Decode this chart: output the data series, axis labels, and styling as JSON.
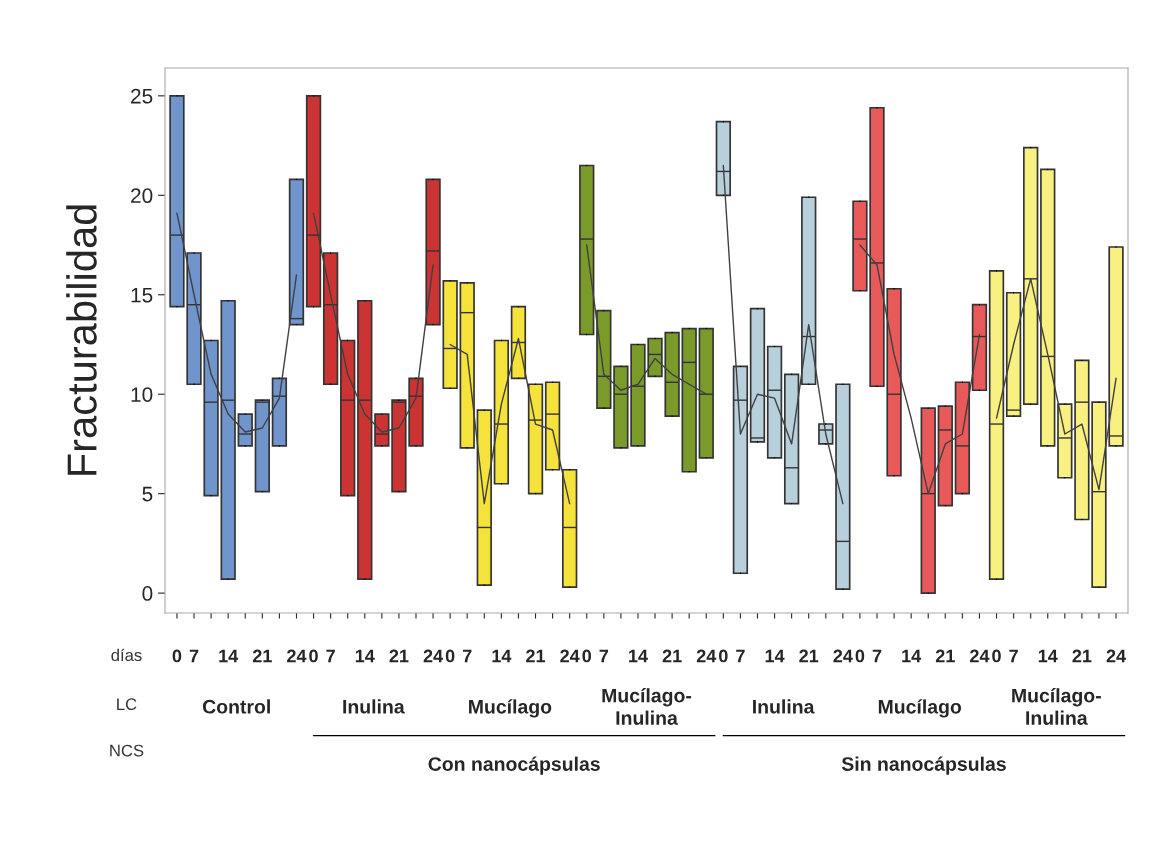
{
  "chart_data": {
    "type": "box",
    "ylabel": "Fracturabilidad",
    "categories": [
      "0",
      "7",
      null,
      "14",
      null,
      "21",
      null,
      "24",
      "0",
      "7",
      null,
      "14",
      null,
      "21",
      null,
      "24",
      "0",
      "7",
      null,
      "14",
      null,
      "21",
      null,
      "24",
      "0",
      "7",
      null,
      "14",
      null,
      "21",
      null,
      "24",
      "0",
      "7",
      null,
      "14",
      null,
      "21",
      null,
      "24",
      "0",
      "7",
      null,
      "14",
      null,
      "21",
      null,
      "24",
      "0",
      "7",
      null,
      "14",
      null,
      "21",
      null,
      "24"
    ],
    "ylim": [
      -1,
      26.4
    ],
    "yticks": [
      0,
      5,
      10,
      15,
      20,
      25
    ],
    "boxes": [
      {
        "low": 14.4,
        "q1": 14.4,
        "median": 18.0,
        "q3": 25.0,
        "high": 25.0
      },
      {
        "low": 10.5,
        "q1": 10.5,
        "median": 14.5,
        "q3": 17.1,
        "high": 17.1
      },
      {
        "low": 4.9,
        "q1": 4.9,
        "median": 9.6,
        "q3": 12.7,
        "high": 12.7
      },
      {
        "low": 0.7,
        "q1": 0.7,
        "median": 9.7,
        "q3": 14.7,
        "high": 14.7
      },
      {
        "low": 7.4,
        "q1": 7.4,
        "median": 8.0,
        "q3": 9.0,
        "high": 9.0
      },
      {
        "low": 5.1,
        "q1": 5.1,
        "median": 9.6,
        "q3": 9.7,
        "high": 9.7
      },
      {
        "low": 7.4,
        "q1": 7.4,
        "median": 9.9,
        "q3": 10.8,
        "high": 10.8
      },
      {
        "low": 13.5,
        "q1": 13.5,
        "median": 13.8,
        "q3": 20.8,
        "high": 20.8
      },
      {
        "low": 14.4,
        "q1": 14.4,
        "median": 18.0,
        "q3": 25.0,
        "high": 25.0
      },
      {
        "low": 10.5,
        "q1": 10.5,
        "median": 14.5,
        "q3": 17.1,
        "high": 17.1
      },
      {
        "low": 4.9,
        "q1": 4.9,
        "median": 9.7,
        "q3": 12.7,
        "high": 12.7
      },
      {
        "low": 0.7,
        "q1": 0.7,
        "median": 9.7,
        "q3": 14.7,
        "high": 14.7
      },
      {
        "low": 7.4,
        "q1": 7.4,
        "median": 8.0,
        "q3": 9.0,
        "high": 9.0
      },
      {
        "low": 5.1,
        "q1": 5.1,
        "median": 9.6,
        "q3": 9.7,
        "high": 9.7
      },
      {
        "low": 7.4,
        "q1": 7.4,
        "median": 9.9,
        "q3": 10.8,
        "high": 10.8
      },
      {
        "low": 13.5,
        "q1": 13.5,
        "median": 17.2,
        "q3": 20.8,
        "high": 20.8
      },
      {
        "low": 10.3,
        "q1": 10.3,
        "median": 12.3,
        "q3": 15.7,
        "high": 15.7
      },
      {
        "low": 7.3,
        "q1": 7.3,
        "median": 14.1,
        "q3": 15.6,
        "high": 15.6
      },
      {
        "low": 0.4,
        "q1": 0.4,
        "median": 3.3,
        "q3": 9.2,
        "high": 9.2
      },
      {
        "low": 5.5,
        "q1": 5.5,
        "median": 8.5,
        "q3": 12.7,
        "high": 12.7
      },
      {
        "low": 10.8,
        "q1": 10.8,
        "median": 12.6,
        "q3": 14.4,
        "high": 14.4
      },
      {
        "low": 5.0,
        "q1": 5.0,
        "median": 8.7,
        "q3": 10.5,
        "high": 10.5
      },
      {
        "low": 6.2,
        "q1": 6.2,
        "median": 9.0,
        "q3": 10.6,
        "high": 10.6
      },
      {
        "low": 0.3,
        "q1": 0.3,
        "median": 3.3,
        "q3": 6.2,
        "high": 6.2
      },
      {
        "low": 13.0,
        "q1": 13.0,
        "median": 17.8,
        "q3": 21.5,
        "high": 21.5
      },
      {
        "low": 9.3,
        "q1": 9.3,
        "median": 10.9,
        "q3": 14.2,
        "high": 14.2
      },
      {
        "low": 7.3,
        "q1": 7.3,
        "median": 10.0,
        "q3": 11.4,
        "high": 11.4
      },
      {
        "low": 7.4,
        "q1": 7.4,
        "median": 10.4,
        "q3": 12.5,
        "high": 12.5
      },
      {
        "low": 10.9,
        "q1": 10.9,
        "median": 12.0,
        "q3": 12.8,
        "high": 12.8
      },
      {
        "low": 8.9,
        "q1": 8.9,
        "median": 10.6,
        "q3": 13.1,
        "high": 13.1
      },
      {
        "low": 6.1,
        "q1": 6.1,
        "median": 11.6,
        "q3": 13.3,
        "high": 13.3
      },
      {
        "low": 6.8,
        "q1": 6.8,
        "median": 10.0,
        "q3": 13.3,
        "high": 13.3
      },
      {
        "low": 20.0,
        "q1": 20.0,
        "median": 21.2,
        "q3": 23.7,
        "high": 23.7
      },
      {
        "low": 1.0,
        "q1": 1.0,
        "median": 9.7,
        "q3": 11.4,
        "high": 11.4
      },
      {
        "low": 7.6,
        "q1": 7.6,
        "median": 7.8,
        "q3": 14.3,
        "high": 14.3
      },
      {
        "low": 6.8,
        "q1": 6.8,
        "median": 10.2,
        "q3": 12.4,
        "high": 12.4
      },
      {
        "low": 4.5,
        "q1": 4.5,
        "median": 6.3,
        "q3": 11.0,
        "high": 11.0
      },
      {
        "low": 10.5,
        "q1": 10.5,
        "median": 12.9,
        "q3": 19.9,
        "high": 19.9
      },
      {
        "low": 7.5,
        "q1": 7.5,
        "median": 8.2,
        "q3": 8.5,
        "high": 8.5
      },
      {
        "low": 0.2,
        "q1": 0.2,
        "median": 2.6,
        "q3": 10.5,
        "high": 10.5
      },
      {
        "low": 15.2,
        "q1": 15.2,
        "median": 17.8,
        "q3": 19.7,
        "high": 19.7
      },
      {
        "low": 10.4,
        "q1": 10.4,
        "median": 16.6,
        "q3": 24.4,
        "high": 24.4
      },
      {
        "low": 5.9,
        "q1": 5.9,
        "median": 10.0,
        "q3": 15.3,
        "high": 15.3
      },
      null,
      {
        "low": 0.0,
        "q1": 0.0,
        "median": 5.0,
        "q3": 9.3,
        "high": 9.3
      },
      {
        "low": 4.4,
        "q1": 4.4,
        "median": 8.2,
        "q3": 9.4,
        "high": 9.4
      },
      {
        "low": 5.0,
        "q1": 5.0,
        "median": 7.4,
        "q3": 10.6,
        "high": 10.6
      },
      {
        "low": 10.2,
        "q1": 10.2,
        "median": 12.9,
        "q3": 14.5,
        "high": 14.5
      },
      {
        "low": 0.7,
        "q1": 0.7,
        "median": 8.5,
        "q3": 16.2,
        "high": 16.2
      },
      {
        "low": 8.9,
        "q1": 8.9,
        "median": 9.2,
        "q3": 15.1,
        "high": 15.1
      },
      {
        "low": 9.5,
        "q1": 9.5,
        "median": 15.8,
        "q3": 22.4,
        "high": 22.4
      },
      {
        "low": 7.4,
        "q1": 7.4,
        "median": 11.9,
        "q3": 21.3,
        "high": 21.3
      },
      {
        "low": 5.8,
        "q1": 5.8,
        "median": 7.8,
        "q3": 9.5,
        "high": 9.5
      },
      {
        "low": 3.7,
        "q1": 3.7,
        "median": 9.6,
        "q3": 11.7,
        "high": 11.7
      },
      {
        "low": 0.3,
        "q1": 0.3,
        "median": 5.1,
        "q3": 9.6,
        "high": 9.6
      },
      {
        "low": 7.4,
        "q1": 7.4,
        "median": 7.9,
        "q3": 17.4,
        "high": 17.4
      }
    ],
    "colors": [
      "#7094cc",
      "#7094cc",
      "#7094cc",
      "#7094cc",
      "#7094cc",
      "#7094cc",
      "#7094cc",
      "#7094cc",
      "#cc3333",
      "#cc3333",
      "#cc3333",
      "#cc3333",
      "#cc3333",
      "#cc3333",
      "#cc3333",
      "#cc3333",
      "#f5e23a",
      "#f5e23a",
      "#f5e23a",
      "#f5e23a",
      "#f5e23a",
      "#f5e23a",
      "#f5e23a",
      "#f5e23a",
      "#7a9a2a",
      "#7a9a2a",
      "#7a9a2a",
      "#7a9a2a",
      "#7a9a2a",
      "#7a9a2a",
      "#7a9a2a",
      "#7a9a2a",
      "#b8d0dc",
      "#b8d0dc",
      "#b8d0dc",
      "#b8d0dc",
      "#b8d0dc",
      "#b8d0dc",
      "#b8d0dc",
      "#b8d0dc",
      "#e85a5a",
      "#e85a5a",
      "#e85a5a",
      "#e85a5a",
      "#e85a5a",
      "#e85a5a",
      "#e85a5a",
      "#e85a5a",
      "#f8f080",
      "#f8f080",
      "#f8f080",
      "#f8f080",
      "#f8f080",
      "#f8f080",
      "#f8f080",
      "#f8f080"
    ],
    "series": [
      {
        "type": "line",
        "color": "#404040",
        "values": [
          19.1,
          15.0,
          11.0,
          9.0,
          8.1,
          8.3,
          9.8,
          16.0,
          null,
          null,
          null,
          null,
          null,
          null,
          null,
          null,
          null,
          null,
          null,
          null,
          null,
          null,
          null,
          null,
          null,
          null,
          null,
          null,
          null,
          null,
          null,
          null,
          null,
          null,
          null,
          null,
          null,
          null,
          null,
          null,
          null,
          null,
          null,
          null,
          null,
          null,
          null,
          null,
          null,
          null,
          null,
          null,
          null,
          null,
          null,
          null
        ]
      },
      {
        "type": "line",
        "color": "#404040",
        "values": [
          null,
          null,
          null,
          null,
          null,
          null,
          null,
          null,
          19.1,
          15.0,
          11.0,
          9.0,
          8.1,
          8.3,
          9.8,
          16.5,
          null,
          null,
          null,
          null,
          null,
          null,
          null,
          null,
          null,
          null,
          null,
          null,
          null,
          null,
          null,
          null,
          null,
          null,
          null,
          null,
          null,
          null,
          null,
          null,
          null,
          null,
          null,
          null,
          null,
          null,
          null,
          null,
          null,
          null,
          null,
          null,
          null,
          null,
          null,
          null
        ]
      },
      {
        "type": "line",
        "color": "#404040",
        "values": [
          null,
          null,
          null,
          null,
          null,
          null,
          null,
          null,
          null,
          null,
          null,
          null,
          null,
          null,
          null,
          null,
          12.5,
          12.0,
          4.5,
          9.5,
          12.8,
          8.5,
          8.2,
          4.5,
          null,
          null,
          null,
          null,
          null,
          null,
          null,
          null,
          null,
          null,
          null,
          null,
          null,
          null,
          null,
          null,
          null,
          null,
          null,
          null,
          null,
          null,
          null,
          null,
          null,
          null,
          null,
          null,
          null,
          null,
          null,
          null
        ]
      },
      {
        "type": "line",
        "color": "#404040",
        "values": [
          null,
          null,
          null,
          null,
          null,
          null,
          null,
          null,
          null,
          null,
          null,
          null,
          null,
          null,
          null,
          null,
          null,
          null,
          null,
          null,
          null,
          null,
          null,
          null,
          17.5,
          11.0,
          10.2,
          10.5,
          11.8,
          11.0,
          10.5,
          10.0,
          null,
          null,
          null,
          null,
          null,
          null,
          null,
          null,
          null,
          null,
          null,
          null,
          null,
          null,
          null,
          null,
          null,
          null,
          null,
          null,
          null,
          null,
          null,
          null
        ]
      },
      {
        "type": "line",
        "color": "#404040",
        "values": [
          null,
          null,
          null,
          null,
          null,
          null,
          null,
          null,
          null,
          null,
          null,
          null,
          null,
          null,
          null,
          null,
          null,
          null,
          null,
          null,
          null,
          null,
          null,
          null,
          null,
          null,
          null,
          null,
          null,
          null,
          null,
          null,
          21.5,
          8.0,
          10.0,
          9.8,
          7.5,
          13.5,
          8.0,
          4.5,
          null,
          null,
          null,
          null,
          null,
          null,
          null,
          null,
          null,
          null,
          null,
          null,
          null,
          null,
          null,
          null
        ]
      },
      {
        "type": "line",
        "color": "#404040",
        "values": [
          null,
          null,
          null,
          null,
          null,
          null,
          null,
          null,
          null,
          null,
          null,
          null,
          null,
          null,
          null,
          null,
          null,
          null,
          null,
          null,
          null,
          null,
          null,
          null,
          null,
          null,
          null,
          null,
          null,
          null,
          null,
          null,
          null,
          null,
          null,
          null,
          null,
          null,
          null,
          null,
          17.5,
          16.5,
          12.0,
          8.8,
          5.0,
          7.5,
          8.0,
          13.0,
          null,
          null,
          null,
          null,
          null,
          null,
          null,
          null
        ]
      },
      {
        "type": "line",
        "color": "#404040",
        "values": [
          null,
          null,
          null,
          null,
          null,
          null,
          null,
          null,
          null,
          null,
          null,
          null,
          null,
          null,
          null,
          null,
          null,
          null,
          null,
          null,
          null,
          null,
          null,
          null,
          null,
          null,
          null,
          null,
          null,
          null,
          null,
          null,
          null,
          null,
          null,
          null,
          null,
          null,
          null,
          null,
          null,
          null,
          null,
          null,
          null,
          null,
          null,
          null,
          8.8,
          12.5,
          15.8,
          12.0,
          8.0,
          8.5,
          5.2,
          10.8
        ]
      }
    ],
    "annotations": [
      "días",
      "LC",
      "NCS",
      "Control",
      "Inulina",
      "Mucílago",
      "Mucílago-\nInulina",
      "Inulina",
      "Mucílago",
      "Mucílago-\nInulina",
      "Con nanocápsulas",
      "Sin nanocápsulas"
    ],
    "grid": false,
    "legend": false
  }
}
